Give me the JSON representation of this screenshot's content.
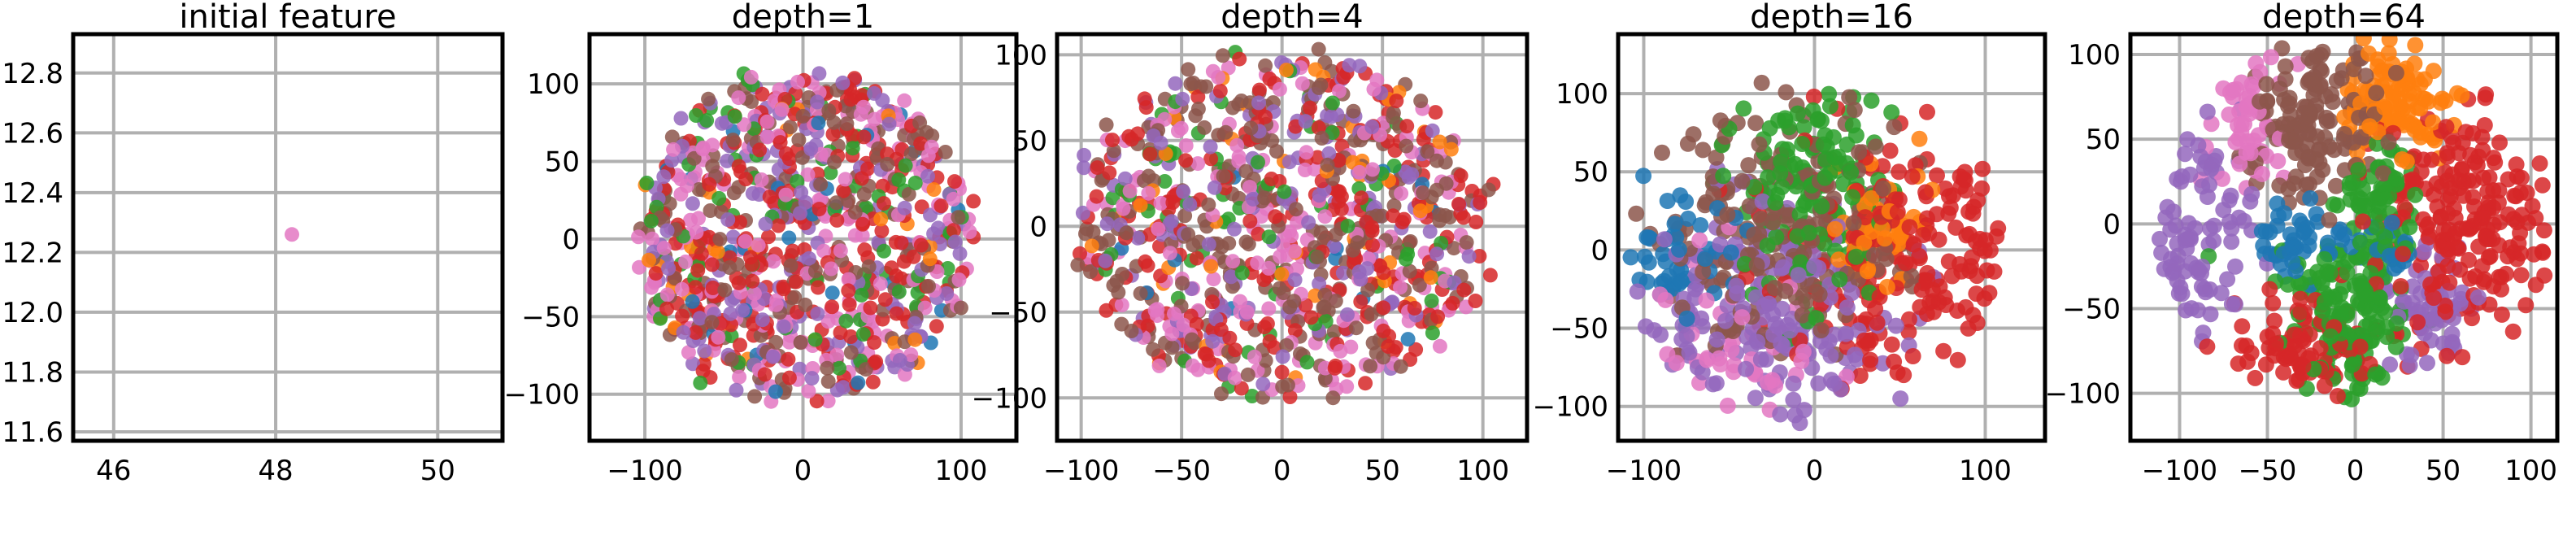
{
  "figure": {
    "colors": {
      "grid": "#b0b0b0",
      "frame": "#000000",
      "palette": [
        "#1f77b4",
        "#ff7f0e",
        "#2ca02c",
        "#d62728",
        "#9467bd",
        "#8c564b",
        "#e377c2"
      ]
    },
    "point_alpha": 0.85
  },
  "chart_data": [
    {
      "type": "scatter",
      "title": "initial feature",
      "xlim": [
        45.5,
        50.8
      ],
      "ylim": [
        11.57,
        12.93
      ],
      "xticks": [
        46,
        48,
        50
      ],
      "xtick_labels": [
        "46",
        "48",
        "50"
      ],
      "yticks": [
        11.6,
        11.8,
        12.0,
        12.2,
        12.4,
        12.6,
        12.8
      ],
      "ytick_labels": [
        "11.6",
        "11.8",
        "12.0",
        "12.2",
        "12.4",
        "12.6",
        "12.8"
      ],
      "grid": true,
      "legend": "none",
      "points": {
        "kind": "collapsed",
        "x": 48.2,
        "y": 12.26,
        "color": "#e377c2"
      }
    },
    {
      "type": "scatter",
      "title": "depth=1",
      "xlim": [
        -135,
        135
      ],
      "ylim": [
        -130,
        132
      ],
      "xticks": [
        -100,
        0,
        100
      ],
      "xtick_labels": [
        "−100",
        "0",
        "100"
      ],
      "yticks": [
        -100,
        -50,
        0,
        50,
        100
      ],
      "ytick_labels": [
        "−100",
        "−50",
        "0",
        "50",
        "100"
      ],
      "grid": true,
      "legend": "none",
      "points": {
        "kind": "mixed",
        "count": 900,
        "radius": 105,
        "seed": 11,
        "weights": [
          0.03,
          0.04,
          0.07,
          0.25,
          0.18,
          0.2,
          0.23
        ]
      }
    },
    {
      "type": "scatter",
      "title": "depth=4",
      "xlim": [
        -112,
        122
      ],
      "ylim": [
        -125,
        112
      ],
      "xticks": [
        -100,
        -50,
        0,
        50,
        100
      ],
      "xtick_labels": [
        "−100",
        "−50",
        "0",
        "50",
        "100"
      ],
      "yticks": [
        -100,
        -50,
        0,
        50,
        100
      ],
      "ytick_labels": [
        "−100",
        "−50",
        "0",
        "50",
        "100"
      ],
      "grid": true,
      "legend": "none",
      "points": {
        "kind": "mixed",
        "count": 950,
        "radius": 100,
        "seed": 23,
        "weights": [
          0.02,
          0.05,
          0.08,
          0.27,
          0.16,
          0.26,
          0.16
        ]
      }
    },
    {
      "type": "scatter",
      "title": "depth=16",
      "xlim": [
        -115,
        135
      ],
      "ylim": [
        -122,
        138
      ],
      "xticks": [
        -100,
        0,
        100
      ],
      "xtick_labels": [
        "−100",
        "0",
        "100"
      ],
      "yticks": [
        -100,
        -50,
        0,
        50,
        100
      ],
      "ytick_labels": [
        "−100",
        "−50",
        "0",
        "50",
        "100"
      ],
      "grid": true,
      "legend": "none",
      "points": {
        "kind": "clusters",
        "seed": 37,
        "clusters": [
          {
            "color": 0,
            "cx": -80,
            "cy": 0,
            "sx": 18,
            "sy": 28,
            "n": 60
          },
          {
            "color": 1,
            "cx": 40,
            "cy": 15,
            "sx": 14,
            "sy": 20,
            "n": 55
          },
          {
            "color": 2,
            "cx": 0,
            "cy": 40,
            "sx": 22,
            "sy": 35,
            "n": 150
          },
          {
            "color": 3,
            "cx": 60,
            "cy": -10,
            "sx": 40,
            "sy": 48,
            "n": 240
          },
          {
            "color": 4,
            "cx": -30,
            "cy": -40,
            "sx": 40,
            "sy": 38,
            "n": 190
          },
          {
            "color": 5,
            "cx": -30,
            "cy": 20,
            "sx": 40,
            "sy": 42,
            "n": 200
          },
          {
            "color": 6,
            "cx": -50,
            "cy": -60,
            "sx": 30,
            "sy": 28,
            "n": 60
          }
        ]
      }
    },
    {
      "type": "scatter",
      "title": "depth=64",
      "xlim": [
        -128,
        115
      ],
      "ylim": [
        -128,
        112
      ],
      "xticks": [
        -100,
        -50,
        0,
        50,
        100
      ],
      "xtick_labels": [
        "−100",
        "−50",
        "0",
        "50",
        "100"
      ],
      "yticks": [
        -100,
        -50,
        0,
        50,
        100
      ],
      "ytick_labels": [
        "−100",
        "−50",
        "0",
        "50",
        "100"
      ],
      "grid": true,
      "legend": "none",
      "points": {
        "kind": "clusters",
        "seed": 59,
        "clusters": [
          {
            "color": 0,
            "cx": -30,
            "cy": -10,
            "sx": 14,
            "sy": 10,
            "n": 45
          },
          {
            "color": 0,
            "cx": 20,
            "cy": -15,
            "sx": 8,
            "sy": 8,
            "n": 20
          },
          {
            "color": 1,
            "cx": 20,
            "cy": 75,
            "sx": 16,
            "sy": 18,
            "n": 110
          },
          {
            "color": 2,
            "cx": -5,
            "cy": -50,
            "sx": 18,
            "sy": 25,
            "n": 150
          },
          {
            "color": 2,
            "cx": 15,
            "cy": 10,
            "sx": 10,
            "sy": 22,
            "n": 70
          },
          {
            "color": 3,
            "cx": 65,
            "cy": 5,
            "sx": 25,
            "sy": 35,
            "n": 220
          },
          {
            "color": 3,
            "cx": -30,
            "cy": -70,
            "sx": 25,
            "sy": 15,
            "n": 90
          },
          {
            "color": 4,
            "cx": -95,
            "cy": -10,
            "sx": 18,
            "sy": 30,
            "n": 110
          },
          {
            "color": 4,
            "cx": 40,
            "cy": -50,
            "sx": 15,
            "sy": 20,
            "n": 60
          },
          {
            "color": 5,
            "cx": -25,
            "cy": 60,
            "sx": 20,
            "sy": 25,
            "n": 140
          },
          {
            "color": 6,
            "cx": -60,
            "cy": 60,
            "sx": 12,
            "sy": 20,
            "n": 60
          }
        ]
      }
    }
  ]
}
